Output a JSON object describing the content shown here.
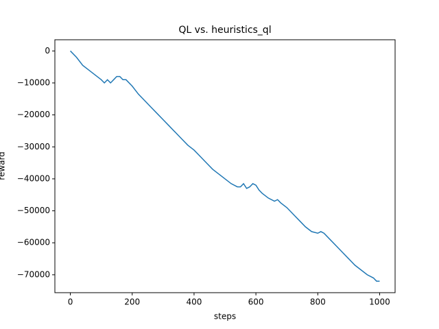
{
  "chart_data": {
    "type": "line",
    "title": "QL vs. heuristics_ql",
    "x_label": "steps",
    "y_label": "reward",
    "x": [
      0,
      20,
      40,
      60,
      80,
      100,
      110,
      120,
      130,
      140,
      150,
      160,
      170,
      180,
      200,
      220,
      240,
      260,
      280,
      300,
      320,
      340,
      360,
      380,
      400,
      420,
      440,
      460,
      480,
      500,
      520,
      540,
      550,
      560,
      570,
      580,
      590,
      600,
      610,
      620,
      640,
      660,
      670,
      680,
      700,
      720,
      740,
      760,
      780,
      800,
      810,
      820,
      840,
      860,
      880,
      900,
      920,
      940,
      960,
      980,
      990,
      1000
    ],
    "series": [
      {
        "color": "#1f77b4",
        "values": [
          0,
          -2000,
          -4500,
          -6000,
          -7500,
          -9000,
          -10000,
          -9000,
          -10000,
          -9000,
          -8000,
          -8000,
          -9000,
          -9000,
          -11000,
          -13500,
          -15500,
          -17500,
          -19500,
          -21500,
          -23500,
          -25500,
          -27500,
          -29500,
          -31000,
          -33000,
          -35000,
          -37000,
          -38500,
          -40000,
          -41500,
          -42500,
          -42500,
          -41500,
          -43000,
          -42500,
          -41500,
          -42000,
          -43500,
          -44500,
          -46000,
          -47000,
          -46500,
          -47500,
          -49000,
          -51000,
          -53000,
          -55000,
          -56500,
          -57000,
          -56500,
          -57000,
          -59000,
          -61000,
          -63000,
          -65000,
          -67000,
          -68500,
          -70000,
          -71000,
          -72000,
          -72000
        ]
      }
    ],
    "xlim": [
      -50,
      1050
    ],
    "ylim": [
      -75600,
      3500
    ],
    "xticks": [
      0,
      200,
      400,
      600,
      800,
      1000
    ],
    "yticks": [
      0,
      {
        "value": -10000,
        "label": "−10000"
      },
      {
        "value": -20000,
        "label": "−20000"
      },
      {
        "value": -30000,
        "label": "−30000"
      },
      {
        "value": -40000,
        "label": "−40000"
      },
      {
        "value": -50000,
        "label": "−50000"
      },
      {
        "value": -60000,
        "label": "−60000"
      },
      {
        "value": -70000,
        "label": "−70000"
      }
    ]
  }
}
